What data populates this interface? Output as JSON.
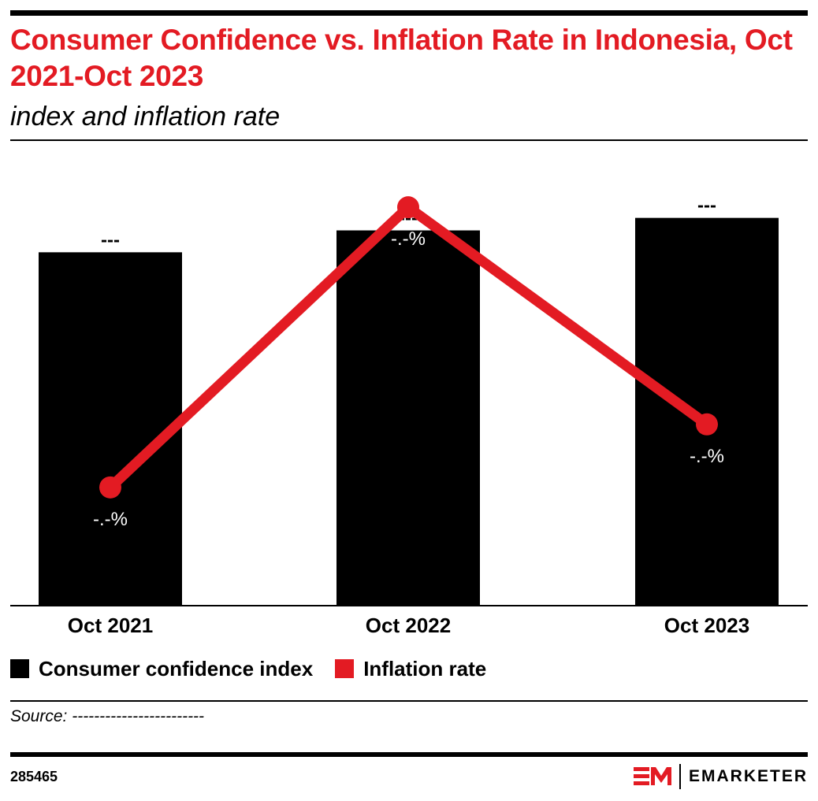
{
  "header": {
    "title": "Consumer Confidence vs. Inflation Rate in Indonesia, Oct 2021-Oct 2023",
    "subtitle": "index and inflation rate"
  },
  "colors": {
    "bar": "#000000",
    "line": "#e31b23",
    "title": "#e31b23"
  },
  "chart_data": {
    "type": "bar",
    "title": "Consumer Confidence vs. Inflation Rate in Indonesia, Oct 2021-Oct 2023",
    "subtitle": "index and inflation rate",
    "categories": [
      "Oct 2021",
      "Oct 2022",
      "Oct 2023"
    ],
    "series": [
      {
        "name": "Consumer confidence index",
        "type": "bar",
        "values": [
          113,
          120,
          124
        ],
        "labels": [
          "---",
          "---",
          "---"
        ]
      },
      {
        "name": "Inflation rate",
        "type": "line",
        "values": [
          1.7,
          5.7,
          2.6
        ],
        "labels": [
          "-.-%",
          "-.-%",
          "-.-%"
        ]
      }
    ],
    "legend": "bottom-left",
    "grid": false
  },
  "legend": [
    {
      "label": "Consumer confidence index",
      "color": "#000000"
    },
    {
      "label": "Inflation rate",
      "color": "#e31b23"
    }
  ],
  "footer": {
    "source": "Source: ------------------------",
    "chart_id": "285465",
    "brand_mark": "EM",
    "brand_name": "EMARKETER"
  }
}
